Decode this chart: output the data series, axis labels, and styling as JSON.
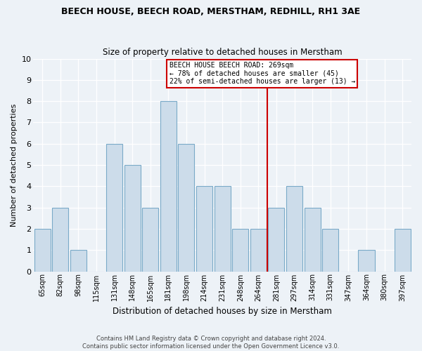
{
  "title": "BEECH HOUSE, BEECH ROAD, MERSTHAM, REDHILL, RH1 3AE",
  "subtitle": "Size of property relative to detached houses in Merstham",
  "xlabel": "Distribution of detached houses by size in Merstham",
  "ylabel": "Number of detached properties",
  "categories": [
    "65sqm",
    "82sqm",
    "98sqm",
    "115sqm",
    "131sqm",
    "148sqm",
    "165sqm",
    "181sqm",
    "198sqm",
    "214sqm",
    "231sqm",
    "248sqm",
    "264sqm",
    "281sqm",
    "297sqm",
    "314sqm",
    "331sqm",
    "347sqm",
    "364sqm",
    "380sqm",
    "397sqm"
  ],
  "values": [
    2,
    3,
    1,
    0,
    6,
    5,
    3,
    8,
    6,
    4,
    4,
    2,
    2,
    3,
    4,
    3,
    2,
    0,
    1,
    0,
    2
  ],
  "bar_color": "#ccdcea",
  "bar_edge_color": "#7aaac8",
  "ref_line_index": 12,
  "annotation_title": "BEECH HOUSE BEECH ROAD: 269sqm",
  "annotation_line1": "← 78% of detached houses are smaller (45)",
  "annotation_line2": "22% of semi-detached houses are larger (13) →",
  "annotation_box_color": "#ffffff",
  "annotation_box_edge_color": "#cc0000",
  "reference_line_color": "#cc0000",
  "ylim": [
    0,
    10
  ],
  "yticks": [
    0,
    1,
    2,
    3,
    4,
    5,
    6,
    7,
    8,
    9,
    10
  ],
  "footer_line1": "Contains HM Land Registry data © Crown copyright and database right 2024.",
  "footer_line2": "Contains public sector information licensed under the Open Government Licence v3.0.",
  "bg_color": "#edf2f7",
  "grid_color": "#ffffff"
}
